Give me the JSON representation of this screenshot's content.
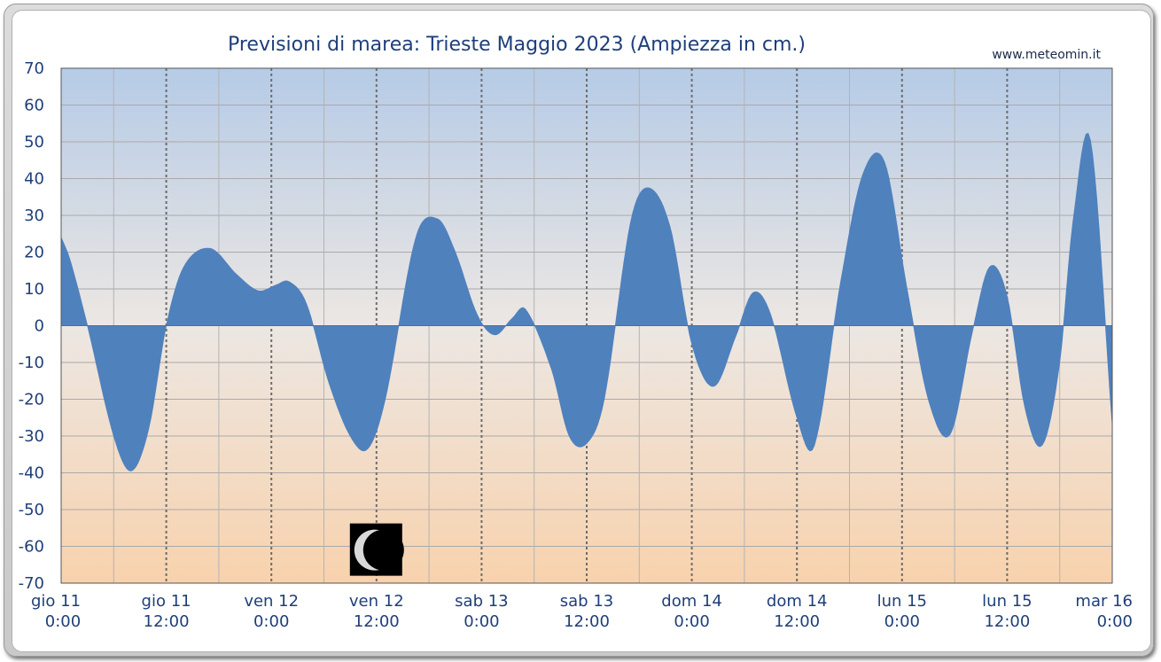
{
  "chart_data": {
    "type": "area",
    "title": "Previsioni di marea: Trieste Maggio 2023 (Ampiezza in cm.)",
    "source": "www.meteomin.it",
    "xlabel": "",
    "ylabel": "",
    "ylim": [
      -70,
      70
    ],
    "yticks": [
      70,
      60,
      50,
      40,
      30,
      20,
      10,
      0,
      -10,
      -20,
      -30,
      -40,
      -50,
      -60,
      -70
    ],
    "xlim_hours": [
      0,
      120
    ],
    "xticks": [
      {
        "hour": 0,
        "day": "gio",
        "date": "11",
        "time": "0:00"
      },
      {
        "hour": 12,
        "day": "gio",
        "date": "11",
        "time": "12:00"
      },
      {
        "hour": 24,
        "day": "ven",
        "date": "12",
        "time": "0:00"
      },
      {
        "hour": 36,
        "day": "ven",
        "date": "12",
        "time": "12:00"
      },
      {
        "hour": 48,
        "day": "sab",
        "date": "13",
        "time": "0:00"
      },
      {
        "hour": 60,
        "day": "sab",
        "date": "13",
        "time": "12:00"
      },
      {
        "hour": 72,
        "day": "dom",
        "date": "14",
        "time": "0:00"
      },
      {
        "hour": 84,
        "day": "dom",
        "date": "14",
        "time": "12:00"
      },
      {
        "hour": 96,
        "day": "lun",
        "date": "15",
        "time": "0:00"
      },
      {
        "hour": 108,
        "day": "lun",
        "date": "15",
        "time": "12:00"
      },
      {
        "hour": 120,
        "day": "mar",
        "date": "16",
        "time": "0:00"
      }
    ],
    "grid": true,
    "moon_phase_hour": 36,
    "series": [
      {
        "color": "#4f81bd",
        "x": [
          0,
          1,
          3,
          6,
          8,
          10,
          12,
          14,
          17,
          20,
          22.5,
          24.5,
          26,
          28,
          30.5,
          33,
          35,
          37,
          40.5,
          43,
          45,
          47.5,
          49.5,
          51.5,
          53,
          56,
          58,
          60,
          62,
          65,
          67,
          69.5,
          72,
          74.5,
          77,
          79,
          81,
          84,
          86,
          89,
          91.5,
          94,
          96.5,
          99,
          101.5,
          104,
          106,
          108,
          110,
          112,
          114,
          115.5,
          117.5,
          120
        ],
        "values": [
          24,
          18,
          0,
          -30,
          -39.5,
          -28,
          0,
          16,
          21,
          14,
          9.5,
          11,
          12,
          6,
          -15,
          -30,
          -33.5,
          -20,
          24,
          29,
          20,
          3,
          -2.5,
          2,
          4.5,
          -12,
          -30,
          -32,
          -20,
          28,
          37.5,
          27,
          -5,
          -16.5,
          -3,
          9,
          3,
          -25,
          -32.5,
          12,
          41,
          44.5,
          11,
          -20,
          -29.5,
          -2,
          16,
          8,
          -22,
          -32.5,
          -10,
          28,
          50.5,
          -27
        ]
      }
    ]
  }
}
